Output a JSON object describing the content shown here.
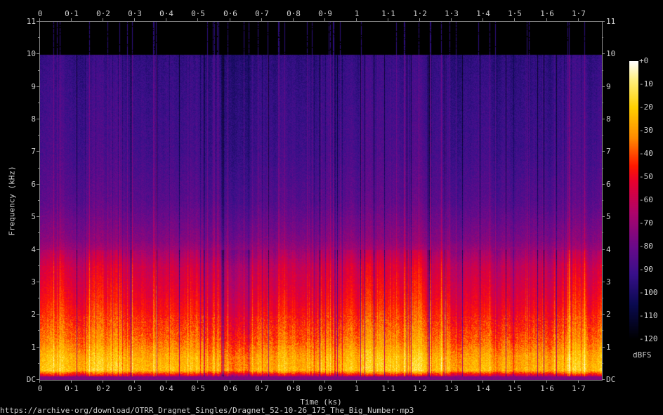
{
  "chart_data": {
    "type": "heatmap",
    "title": "",
    "xlabel": "Time (ks)",
    "ylabel": "Frequency (kHz)",
    "xlim": [
      0,
      1.774
    ],
    "ylim": [
      0,
      11
    ],
    "x_ticks": [
      "0",
      "0·1",
      "0·2",
      "0·3",
      "0·4",
      "0·5",
      "0·6",
      "0·7",
      "0·8",
      "0·9",
      "1",
      "1·1",
      "1·2",
      "1·3",
      "1·4",
      "1·5",
      "1·6",
      "1·7"
    ],
    "x_tick_values": [
      0,
      0.1,
      0.2,
      0.3,
      0.4,
      0.5,
      0.6,
      0.7,
      0.8,
      0.9,
      1,
      1.1,
      1.2,
      1.3,
      1.4,
      1.5,
      1.6,
      1.7
    ],
    "y_ticks": [
      "DC",
      "1",
      "2",
      "3",
      "4",
      "5",
      "6",
      "7",
      "8",
      "9",
      "10",
      "11"
    ],
    "y_tick_values": [
      0,
      1,
      2,
      3,
      4,
      5,
      6,
      7,
      8,
      9,
      10,
      11
    ],
    "colorbar": {
      "label": "dBFS",
      "range": [
        -120,
        0
      ],
      "ticks": [
        "+0",
        "-10",
        "-20",
        "-30",
        "-40",
        "-50",
        "-60",
        "-70",
        "-80",
        "-90",
        "-100",
        "-110",
        "-120"
      ],
      "tick_values": [
        0,
        -10,
        -20,
        -30,
        -40,
        -50,
        -60,
        -70,
        -80,
        -90,
        -100,
        -110,
        -120
      ],
      "colormap": [
        {
          "db": -120,
          "color": "#000000"
        },
        {
          "db": -105,
          "color": "#0a0a50"
        },
        {
          "db": -92,
          "color": "#38108a"
        },
        {
          "db": -80,
          "color": "#6a0a8a"
        },
        {
          "db": -65,
          "color": "#b0046a"
        },
        {
          "db": -52,
          "color": "#e80030"
        },
        {
          "db": -45,
          "color": "#ff1a00"
        },
        {
          "db": -33,
          "color": "#ff8c00"
        },
        {
          "db": -20,
          "color": "#ffd000"
        },
        {
          "db": -8,
          "color": "#fff080"
        },
        {
          "db": 0,
          "color": "#ffffff"
        }
      ]
    },
    "approx_spectral_profile_dbfs": {
      "frequency_khz": [
        0.05,
        0.3,
        0.7,
        1.2,
        1.8,
        2.5,
        3.5,
        4.3,
        5.5,
        7,
        9,
        10,
        10.05,
        11
      ],
      "level_dbfs": [
        -75,
        -25,
        -28,
        -38,
        -45,
        -52,
        -60,
        -75,
        -85,
        -90,
        -93,
        -95,
        -130,
        -130
      ]
    },
    "cutoff_khz": 10,
    "source_url": "https://archive·org/download/OTRR_Dragnet_Singles/Dragnet_52-10-26_175_The_Big_Number·mp3"
  }
}
